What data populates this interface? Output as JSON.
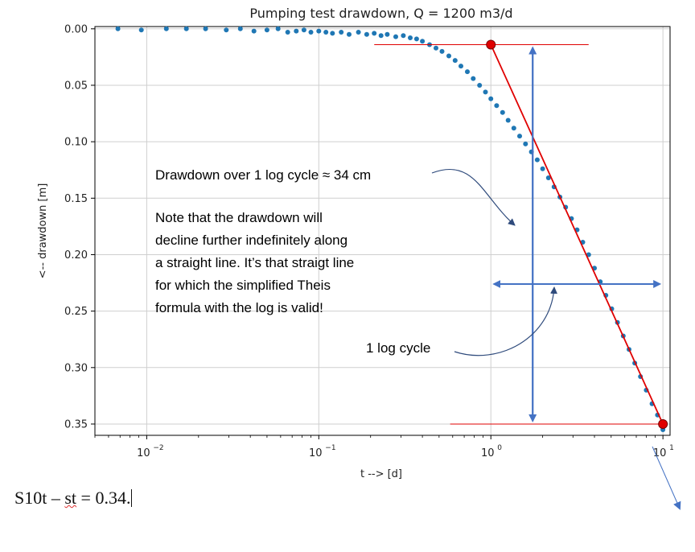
{
  "chart_data": {
    "type": "scatter",
    "title": "Pumping test drawdown, Q = 1200 m3/d",
    "xlabel": "t --> [d]",
    "ylabel": "<-- drawdown [m]",
    "x_scale": "log",
    "xlim": [
      0.005,
      11
    ],
    "ylim": [
      0.36,
      -0.002
    ],
    "y_inverted": true,
    "grid": true,
    "x_ticks": [
      {
        "value": 0.01,
        "base": "10",
        "exp": "−2"
      },
      {
        "value": 0.1,
        "base": "10",
        "exp": "−1"
      },
      {
        "value": 1,
        "base": "10",
        "exp": "0"
      },
      {
        "value": 10,
        "base": "10",
        "exp": "1"
      }
    ],
    "y_ticks": [
      "0.00",
      "0.05",
      "0.10",
      "0.15",
      "0.20",
      "0.25",
      "0.30",
      "0.35"
    ],
    "series": [
      {
        "color": "#1f77b4",
        "x": [
          0.0068,
          0.0093,
          0.013,
          0.017,
          0.022,
          0.029,
          0.035,
          0.042,
          0.05,
          0.058,
          0.066,
          0.074,
          0.082,
          0.09,
          0.1,
          0.11,
          0.12,
          0.135,
          0.15,
          0.17,
          0.19,
          0.21,
          0.23,
          0.25,
          0.28,
          0.31,
          0.34,
          0.37,
          0.4,
          0.44,
          0.48,
          0.52,
          0.57,
          0.62,
          0.67,
          0.73,
          0.79,
          0.86,
          0.93,
          1.0,
          1.08,
          1.17,
          1.26,
          1.36,
          1.47,
          1.59,
          1.72,
          1.86,
          2.0,
          2.16,
          2.33,
          2.52,
          2.72,
          2.94,
          3.17,
          3.42,
          3.7,
          4.0,
          4.32,
          4.66,
          5.04,
          5.44,
          5.88,
          6.35,
          6.86,
          7.4,
          8.0,
          8.64,
          9.3,
          9.8,
          10.0
        ],
        "y": [
          0.0,
          0.001,
          0.0,
          0.0,
          0.0,
          0.001,
          0.0,
          0.002,
          0.001,
          0.0,
          0.003,
          0.002,
          0.001,
          0.003,
          0.002,
          0.003,
          0.004,
          0.003,
          0.005,
          0.003,
          0.005,
          0.004,
          0.006,
          0.005,
          0.007,
          0.006,
          0.008,
          0.009,
          0.011,
          0.014,
          0.017,
          0.02,
          0.024,
          0.028,
          0.033,
          0.038,
          0.044,
          0.05,
          0.056,
          0.062,
          0.068,
          0.074,
          0.081,
          0.088,
          0.095,
          0.102,
          0.109,
          0.116,
          0.124,
          0.132,
          0.14,
          0.149,
          0.158,
          0.168,
          0.178,
          0.189,
          0.2,
          0.212,
          0.224,
          0.236,
          0.248,
          0.26,
          0.272,
          0.284,
          0.296,
          0.308,
          0.32,
          0.332,
          0.342,
          0.35,
          0.355
        ]
      }
    ],
    "straight_line": {
      "color": "#e00000",
      "x": [
        1.0,
        10.0
      ],
      "y": [
        0.014,
        0.35
      ]
    },
    "red_markers": [
      {
        "x": 1.0,
        "y": 0.014
      },
      {
        "x": 10.0,
        "y": 0.35
      }
    ],
    "hlines": [
      {
        "y": 0.014,
        "x": [
          0.21,
          3.7
        ]
      },
      {
        "y": 0.35,
        "x": [
          0.58,
          10.0
        ]
      }
    ],
    "vertical_arrow": {
      "x": 1.75,
      "y": [
        0.014,
        0.35
      ],
      "color": "#4472c4"
    },
    "horizontal_arrow": {
      "y": 0.226,
      "x": [
        1.0,
        10.0
      ],
      "color": "#4472c4"
    }
  },
  "annotations": {
    "drawdown_cycle": "Drawdown over 1 log cycle ≈ 34 cm",
    "note_line1": "Note that the drawdown will",
    "note_line2": "decline further indefinitely along",
    "note_line3": "a straight line. It’s that straigt line",
    "note_line4": "for which the simplified Theis",
    "note_line5": "formula with the log is valid!",
    "log_cycle": "1 log cycle"
  },
  "formula": {
    "part1": "S10t – ",
    "part2": "st",
    "part3": " = 0.34."
  }
}
